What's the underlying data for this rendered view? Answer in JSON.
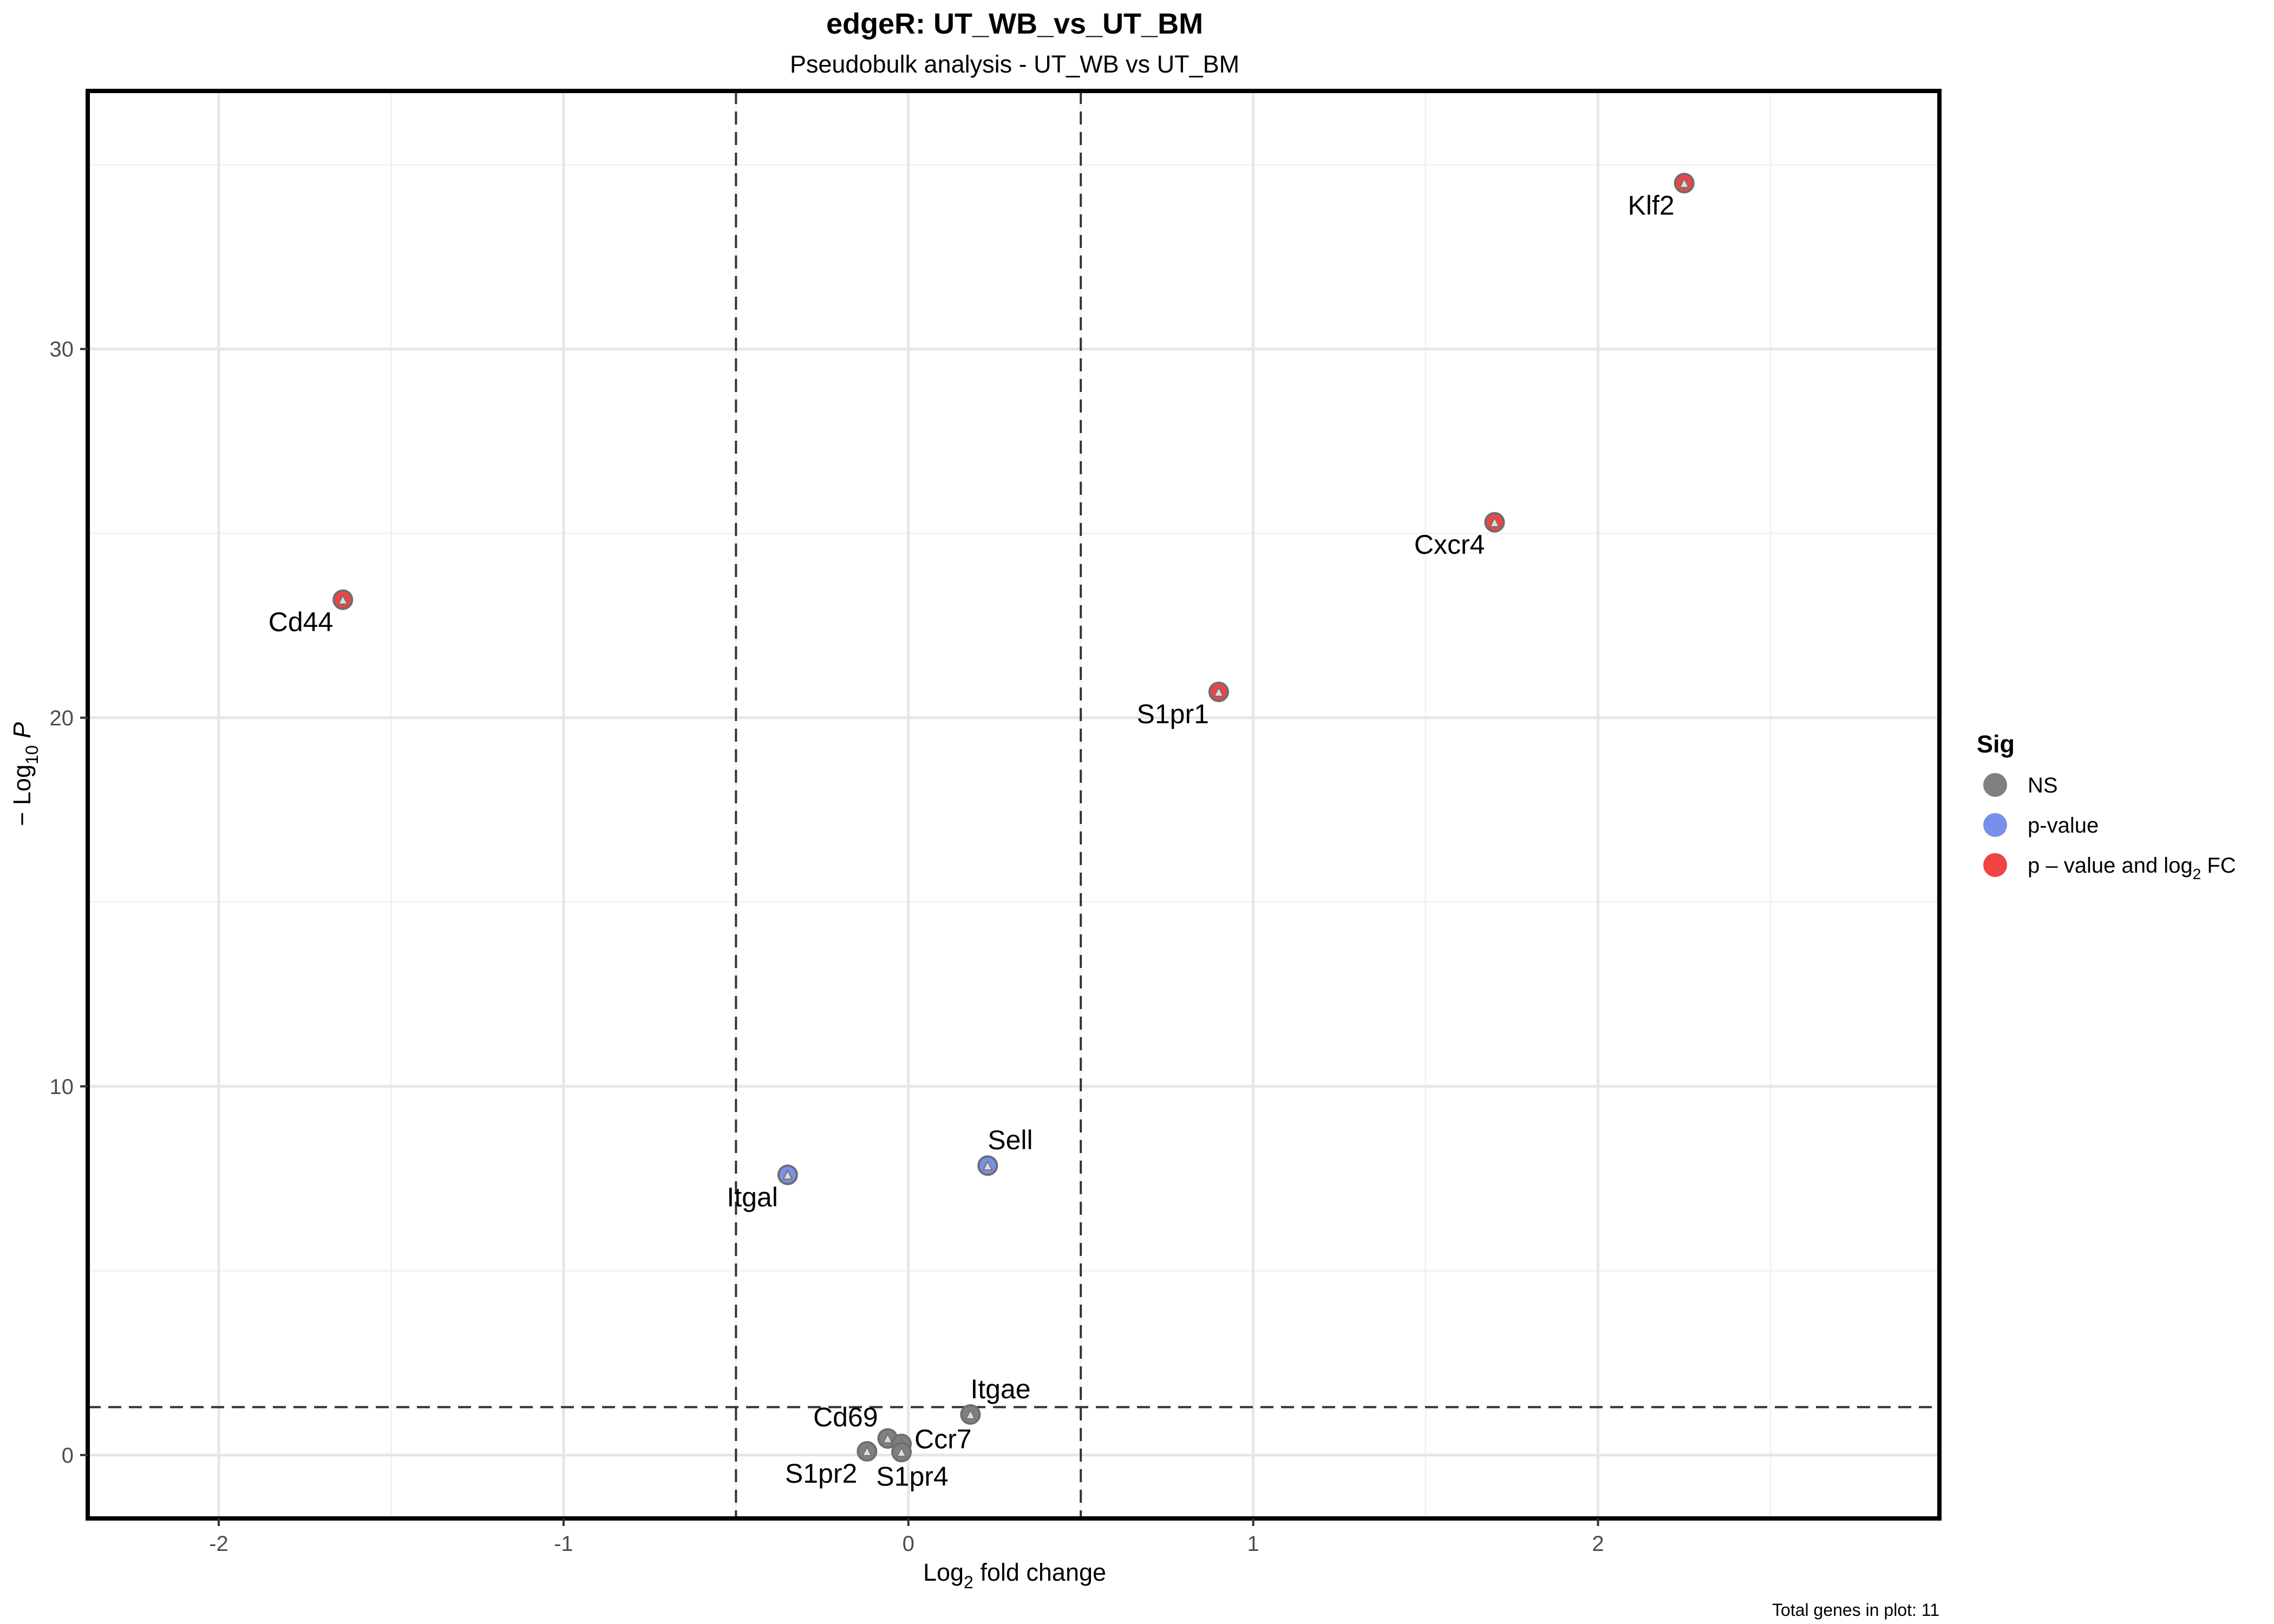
{
  "chart_data": {
    "type": "scatter",
    "title": "edgeR: UT_WB_vs_UT_BM",
    "subtitle": "Pseudobulk analysis - UT_WB vs UT_BM",
    "xlabel": "Log2 fold change",
    "ylabel": "−Log10 P",
    "caption": "Total genes in plot: 11",
    "xlim": [
      -2.38,
      2.99
    ],
    "ylim": [
      -1.72,
      37.0
    ],
    "x_ticks": [
      -2,
      -1,
      0,
      1,
      2
    ],
    "y_ticks": [
      0,
      10,
      20,
      30
    ],
    "grid": true,
    "cutoffs": {
      "log2fc": [
        -0.5,
        0.5
      ],
      "neg_log10_p": 1.3
    },
    "legend": {
      "title": "Sig",
      "position": "right",
      "items": [
        {
          "key": "NS",
          "label": "NS",
          "color": "#808080"
        },
        {
          "key": "p",
          "label": "p-value",
          "color": "#7890e8"
        },
        {
          "key": "pfc",
          "label": "p – value and log2 FC",
          "color": "#ee4444"
        }
      ]
    },
    "points": [
      {
        "gene": "Klf2",
        "x": 2.25,
        "y": 34.5,
        "sig": "pfc",
        "label_pos": "below-left"
      },
      {
        "gene": "Cxcr4",
        "x": 1.7,
        "y": 25.3,
        "sig": "pfc",
        "label_pos": "below-left"
      },
      {
        "gene": "Cd44",
        "x": -1.64,
        "y": 23.2,
        "sig": "pfc",
        "label_pos": "below-left"
      },
      {
        "gene": "S1pr1",
        "x": 0.9,
        "y": 20.7,
        "sig": "pfc",
        "label_pos": "below-left"
      },
      {
        "gene": "Sell",
        "x": 0.23,
        "y": 7.85,
        "sig": "p",
        "label_pos": "above-right"
      },
      {
        "gene": "Itgal",
        "x": -0.35,
        "y": 7.6,
        "sig": "p",
        "label_pos": "below-left"
      },
      {
        "gene": "Itgae",
        "x": 0.18,
        "y": 1.1,
        "sig": "NS",
        "label_pos": "above-right"
      },
      {
        "gene": "Cd69",
        "x": -0.06,
        "y": 0.45,
        "sig": "NS",
        "label_pos": "above-left"
      },
      {
        "gene": "Ccr7",
        "x": -0.02,
        "y": 0.3,
        "sig": "NS",
        "label_pos": "right"
      },
      {
        "gene": "S1pr4",
        "x": -0.02,
        "y": 0.08,
        "sig": "NS",
        "label_pos": "below"
      },
      {
        "gene": "S1pr2",
        "x": -0.12,
        "y": 0.1,
        "sig": "NS",
        "label_pos": "below-left"
      }
    ]
  }
}
